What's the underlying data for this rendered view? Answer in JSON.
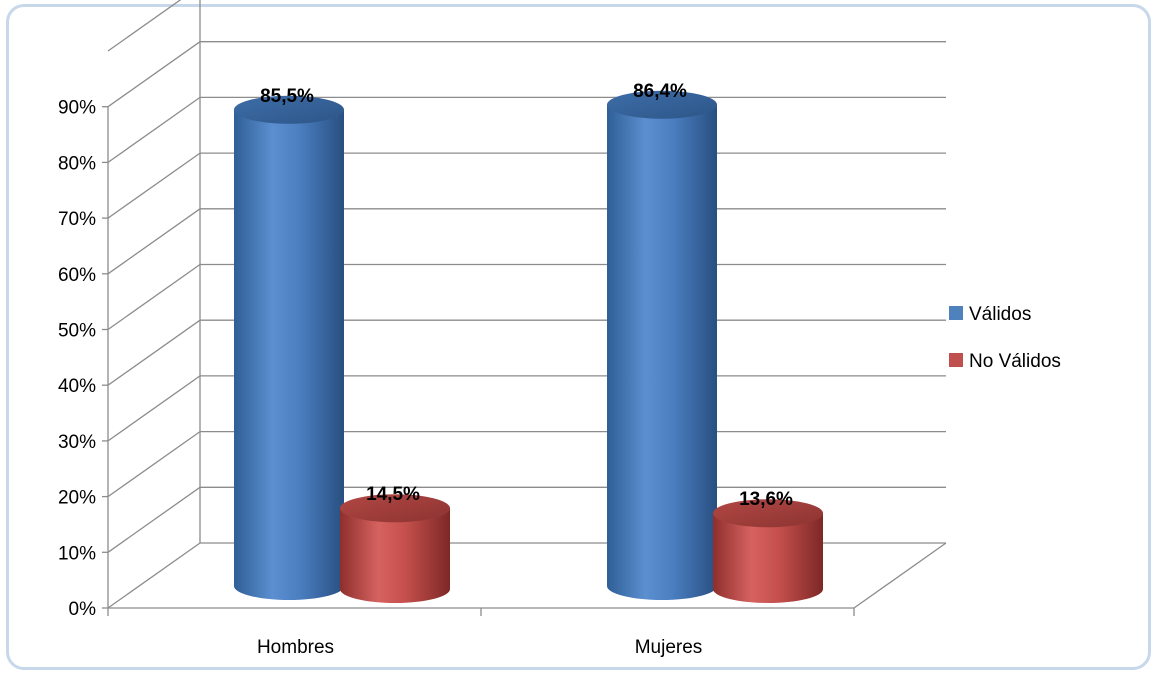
{
  "chart_data": {
    "type": "bar",
    "title": "",
    "categories": [
      "Hombres",
      "Mujeres"
    ],
    "series": [
      {
        "name": "Válidos",
        "values": [
          85.5,
          86.4
        ],
        "color": "#4f81bd"
      },
      {
        "name": "No Válidos",
        "values": [
          14.5,
          13.6
        ],
        "color": "#c0504d"
      }
    ],
    "data_labels": [
      [
        "85,5%",
        "86,4%"
      ],
      [
        "14,5%",
        "13,6%"
      ]
    ],
    "y_ticks": [
      "0%",
      "10%",
      "20%",
      "30%",
      "40%",
      "50%",
      "60%",
      "70%",
      "80%",
      "90%"
    ],
    "ylim": [
      0,
      100
    ],
    "grid": true,
    "legend_position": "right",
    "style": "3d-cylinder"
  }
}
